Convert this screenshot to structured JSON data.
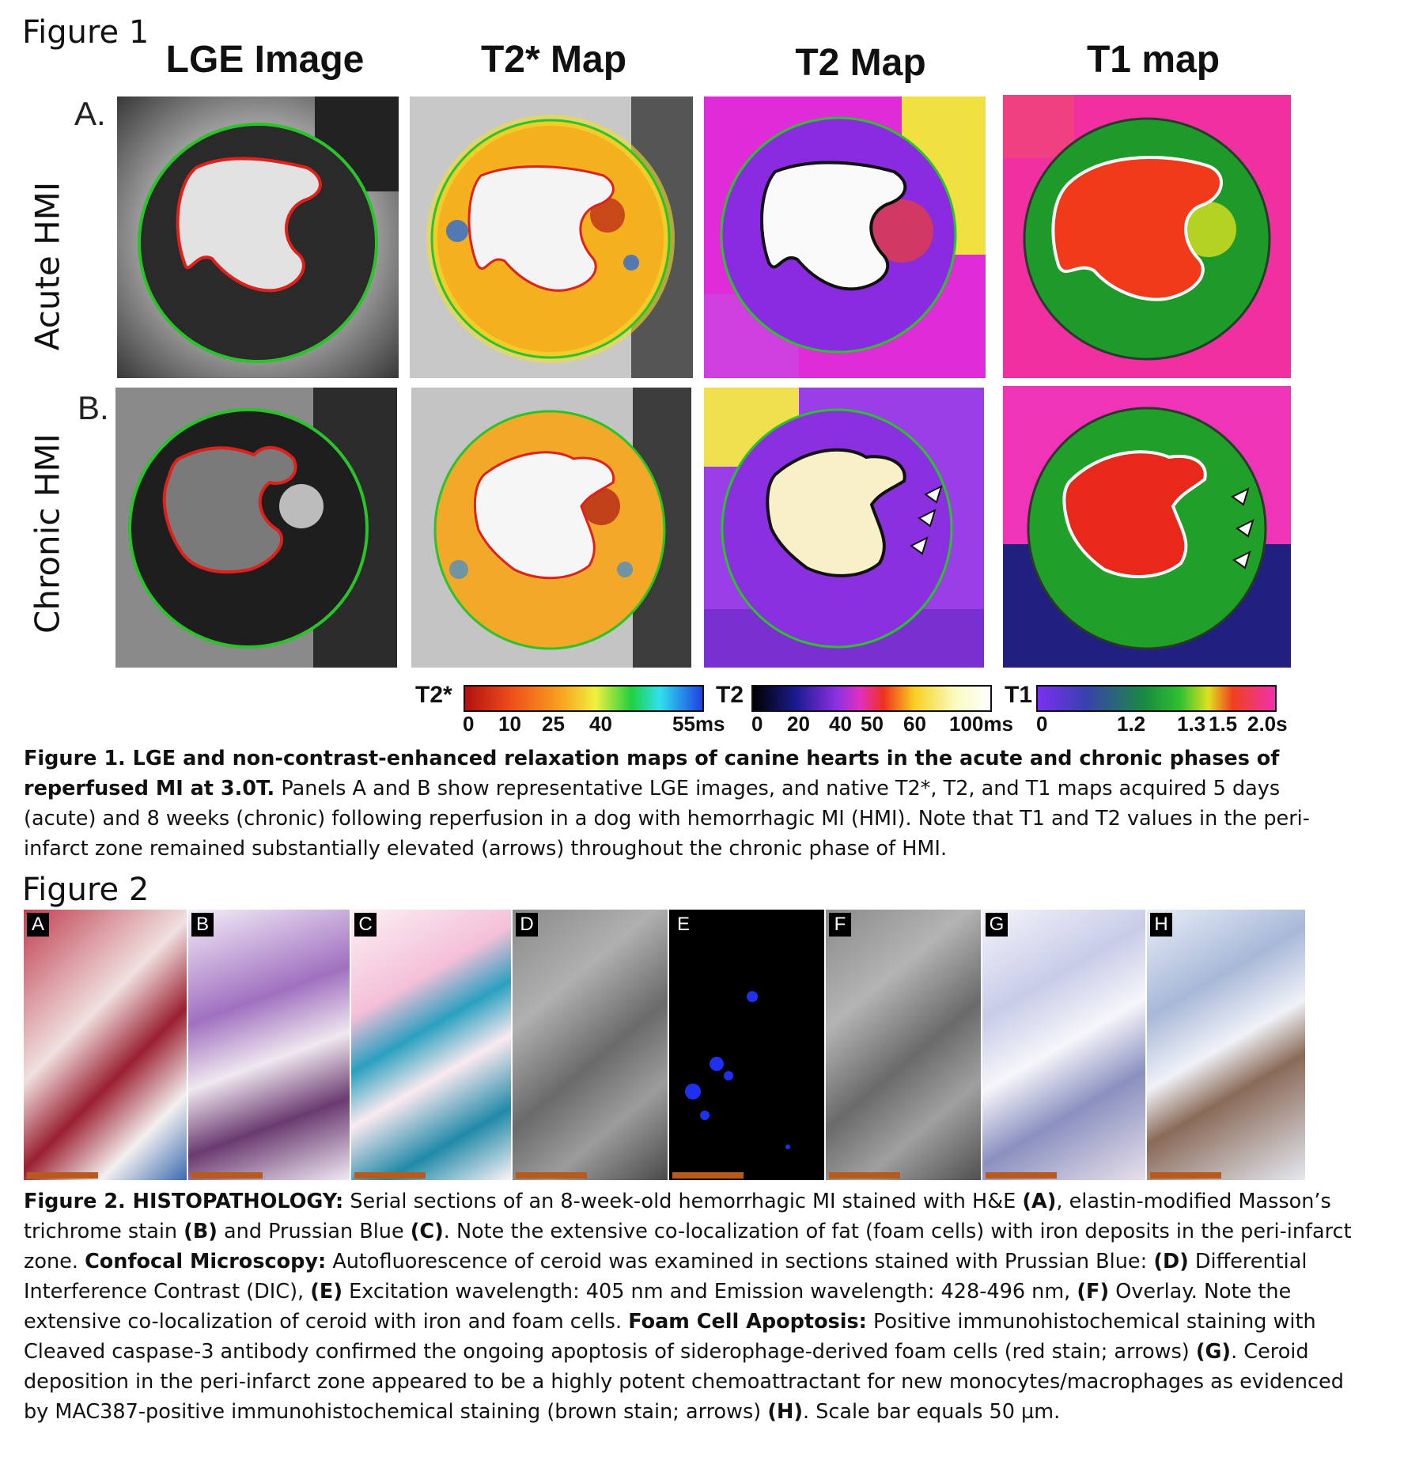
{
  "figure1": {
    "heading": "Figure 1",
    "columns": [
      "LGE Image",
      "T2* Map",
      "T2 Map",
      "T1 map"
    ],
    "rows": [
      {
        "letter": "A.",
        "label": "Acute  HMI"
      },
      {
        "letter": "B.",
        "label": "Chronic  HMI"
      }
    ],
    "colorbars": {
      "t2star": {
        "label": "T2*",
        "ticks": [
          "0",
          "10",
          "25",
          "40",
          "55ms"
        ]
      },
      "t2": {
        "label": "T2",
        "ticks": [
          "0",
          "20",
          "40",
          "50",
          "60",
          "100ms"
        ]
      },
      "t1": {
        "label": "T1",
        "ticks": [
          "0",
          "1.2",
          "1.3",
          "1.5",
          "2.0s"
        ]
      }
    },
    "caption_bold": "Figure 1. LGE and non-contrast-enhanced relaxation maps of canine hearts in the acute and chronic phases of reperfused MI at 3.0T.",
    "caption_rest": "Panels A and B show representative LGE images, and native T2*, T2, and T1 maps acquired 5 days (acute) and 8 weeks (chronic) following reperfusion in a dog with hemorrhagic MI (HMI). Note that T1 and T2 values in the peri-infarct zone remained substantially elevated (arrows) throughout the chronic phase of HMI."
  },
  "figure2": {
    "heading": "Figure 2",
    "panels": [
      "A",
      "B",
      "C",
      "D",
      "E",
      "F",
      "G",
      "H"
    ],
    "caption": {
      "s1_bold": "Figure 2. HISTOPATHOLOGY:",
      "s1": " Serial sections of an 8-week-old hemorrhagic MI stained with H&E ",
      "a": "(A)",
      "s2": ", elastin-modified Masson’s trichrome stain ",
      "b": "(B)",
      "s3": " and Prussian Blue ",
      "c": "(C)",
      "s4": ". Note the extensive co-localization of fat (foam cells) with iron deposits in the peri-infarct zone. ",
      "confocal_bold": "Confocal Microscopy:",
      "s5": " Autofluorescence of ceroid was examined in sections stained with Prussian Blue: ",
      "d": "(D)",
      "s6": " Differential Interference Contrast (DIC), ",
      "e": "(E)",
      "s7": " Excitation wavelength: 405 nm and Emission wavelength: 428-496 nm, ",
      "f": "(F)",
      "s8": " Overlay. Note the extensive co-localization of ceroid with iron and foam cells. ",
      "apoptosis_bold": "Foam Cell Apoptosis:",
      "s9": " Positive immunohistochemical staining with Cleaved caspase-3 antibody confirmed the ongoing apoptosis of siderophage-derived foam cells (red stain; arrows) ",
      "g": "(G)",
      "s10": ". Ceroid deposition in the peri-infarct zone appeared to be a highly potent chemoattractant for new monocytes/macrophages as evidenced by MAC387-positive immunohistochemical staining (brown stain; arrows) ",
      "h": "(H)",
      "s11": ". Scale bar equals 50 µm."
    }
  }
}
